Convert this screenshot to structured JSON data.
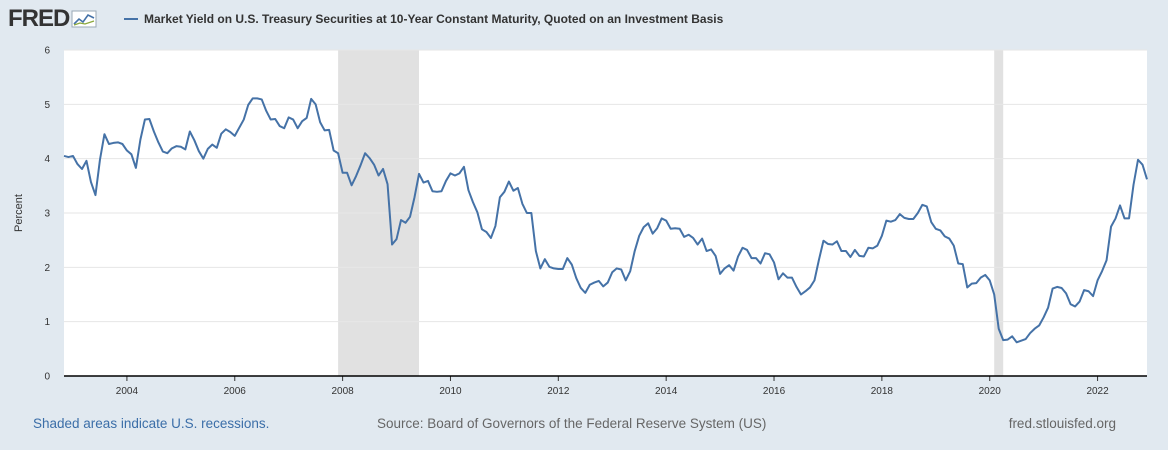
{
  "header": {
    "logo_text": "FRED",
    "legend_label": "Market Yield on U.S. Treasury Securities at 10-Year Constant Maturity, Quoted on an Investment Basis"
  },
  "footer": {
    "recession_note": "Shaded areas indicate U.S. recessions.",
    "source": "Source: Board of Governors of the Federal Reserve System (US)",
    "site": "fred.stlouisfed.org"
  },
  "colors": {
    "series": "#4572a7",
    "recession": "#e1e1e1",
    "background": "#e1e9f0",
    "plot": "#ffffff"
  },
  "chart_data": {
    "type": "line",
    "title": "",
    "xlabel": "",
    "ylabel": "Percent",
    "ylim": [
      0,
      6
    ],
    "yticks": [
      0,
      1,
      2,
      3,
      4,
      5,
      6
    ],
    "xticks": [
      2004,
      2006,
      2008,
      2010,
      2012,
      2014,
      2016,
      2018,
      2020,
      2022
    ],
    "xlim": [
      "2002-11",
      "2022-12"
    ],
    "grid": true,
    "legend_position": "top",
    "recessions": [
      {
        "start": "2007-12",
        "end": "2009-06"
      },
      {
        "start": "2020-02",
        "end": "2020-04"
      }
    ],
    "series": [
      {
        "name": "Market Yield on U.S. Treasury Securities at 10-Year Constant Maturity, Quoted on an Investment Basis",
        "start": "2002-11",
        "frequency": "monthly",
        "values": [
          4.05,
          4.03,
          4.05,
          3.9,
          3.81,
          3.96,
          3.57,
          3.33,
          3.98,
          4.45,
          4.27,
          4.29,
          4.3,
          4.27,
          4.15,
          4.08,
          3.83,
          4.35,
          4.72,
          4.73,
          4.5,
          4.3,
          4.13,
          4.1,
          4.19,
          4.23,
          4.22,
          4.17,
          4.5,
          4.34,
          4.14,
          4.0,
          4.18,
          4.26,
          4.2,
          4.46,
          4.54,
          4.49,
          4.42,
          4.57,
          4.72,
          4.99,
          5.11,
          5.11,
          5.09,
          4.88,
          4.72,
          4.73,
          4.6,
          4.56,
          4.76,
          4.72,
          4.56,
          4.69,
          4.75,
          5.1,
          5.0,
          4.67,
          4.52,
          4.53,
          4.15,
          4.1,
          3.74,
          3.74,
          3.51,
          3.68,
          3.88,
          4.1,
          4.01,
          3.89,
          3.69,
          3.81,
          3.53,
          2.42,
          2.52,
          2.87,
          2.82,
          2.93,
          3.29,
          3.72,
          3.56,
          3.59,
          3.4,
          3.39,
          3.4,
          3.59,
          3.73,
          3.69,
          3.73,
          3.85,
          3.42,
          3.2,
          3.01,
          2.7,
          2.65,
          2.54,
          2.76,
          3.29,
          3.39,
          3.58,
          3.41,
          3.46,
          3.17,
          3.0,
          3.0,
          2.3,
          1.98,
          2.15,
          2.01,
          1.98,
          1.97,
          1.97,
          2.17,
          2.05,
          1.8,
          1.62,
          1.53,
          1.68,
          1.72,
          1.75,
          1.65,
          1.72,
          1.91,
          1.98,
          1.96,
          1.76,
          1.93,
          2.3,
          2.58,
          2.74,
          2.81,
          2.62,
          2.72,
          2.9,
          2.86,
          2.71,
          2.72,
          2.71,
          2.56,
          2.6,
          2.54,
          2.42,
          2.53,
          2.3,
          2.33,
          2.21,
          1.88,
          1.98,
          2.04,
          1.94,
          2.2,
          2.36,
          2.32,
          2.17,
          2.17,
          2.07,
          2.26,
          2.24,
          2.09,
          1.78,
          1.89,
          1.81,
          1.81,
          1.64,
          1.5,
          1.56,
          1.63,
          1.76,
          2.14,
          2.49,
          2.43,
          2.42,
          2.48,
          2.3,
          2.3,
          2.19,
          2.32,
          2.21,
          2.2,
          2.36,
          2.35,
          2.4,
          2.58,
          2.86,
          2.84,
          2.87,
          2.98,
          2.91,
          2.89,
          2.89,
          3.0,
          3.15,
          3.12,
          2.83,
          2.71,
          2.68,
          2.57,
          2.53,
          2.4,
          2.07,
          2.06,
          1.63,
          1.7,
          1.71,
          1.81,
          1.86,
          1.76,
          1.5,
          0.87,
          0.66,
          0.67,
          0.73,
          0.62,
          0.65,
          0.68,
          0.79,
          0.87,
          0.93,
          1.08,
          1.26,
          1.61,
          1.64,
          1.62,
          1.52,
          1.32,
          1.28,
          1.37,
          1.58,
          1.56,
          1.47,
          1.76,
          1.93,
          2.13,
          2.75,
          2.9,
          3.14,
          2.9,
          2.9,
          3.52,
          3.98,
          3.89,
          3.62
        ]
      }
    ]
  }
}
